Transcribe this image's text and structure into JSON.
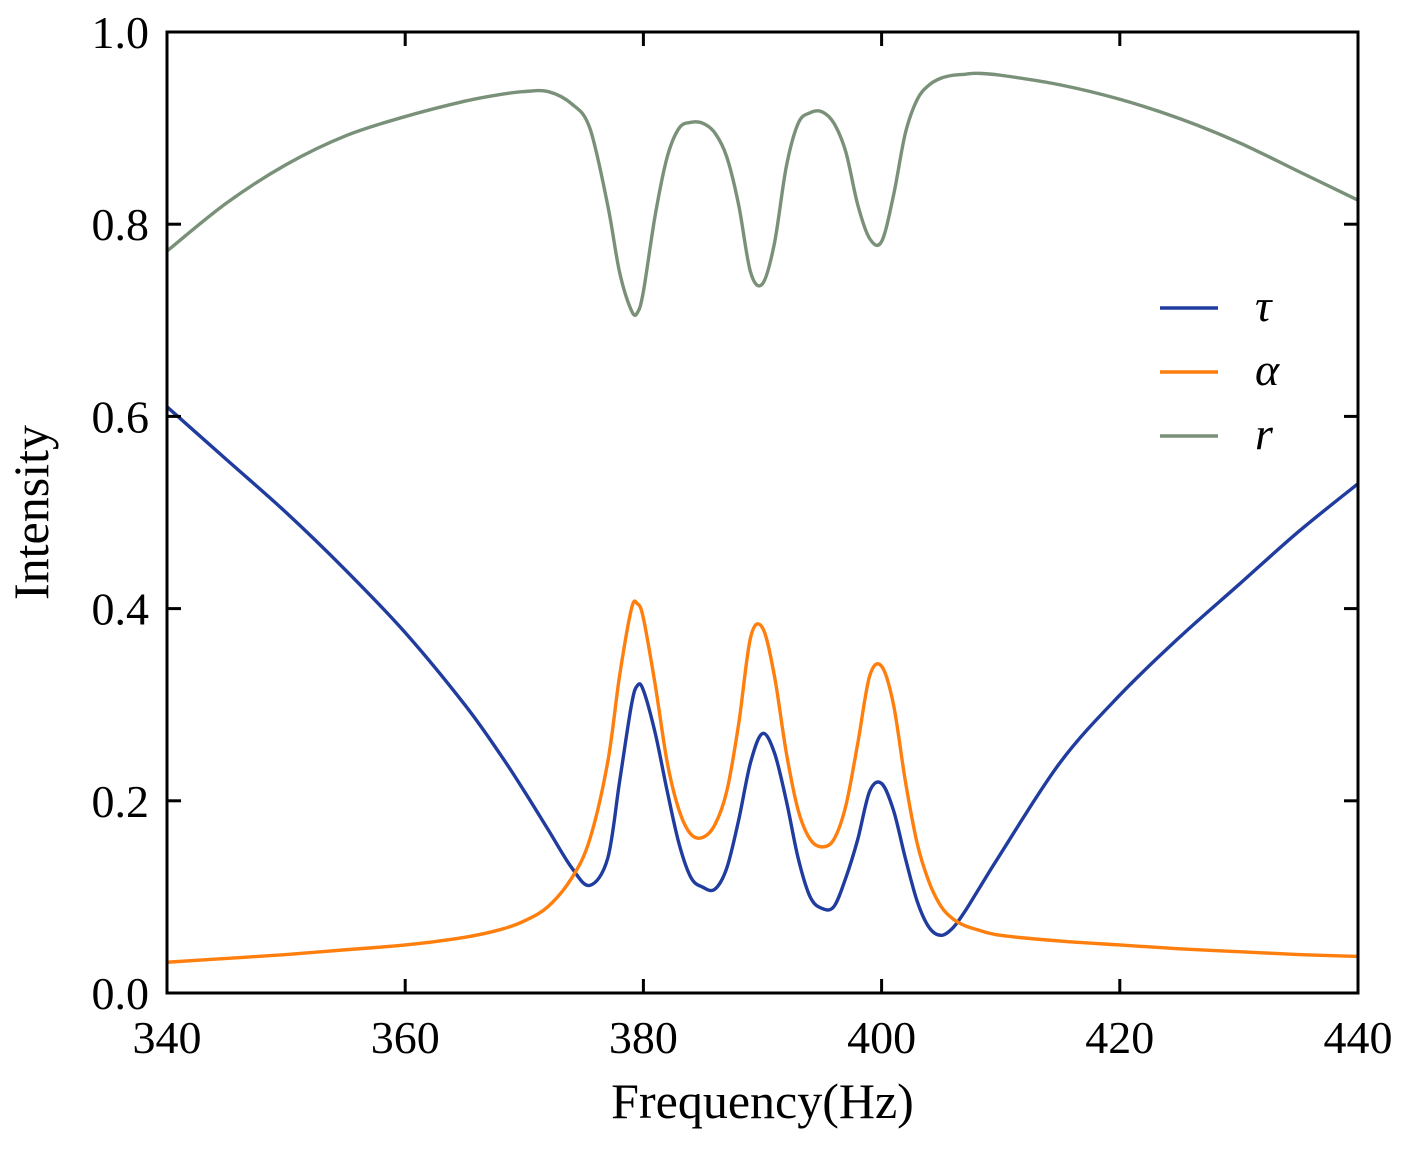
{
  "chart_data": {
    "type": "line",
    "xlabel": "Frequency(Hz)",
    "ylabel": "Intensity",
    "xlim": [
      340,
      440
    ],
    "ylim": [
      0.0,
      1.0
    ],
    "xticks": [
      340,
      360,
      380,
      400,
      420,
      440
    ],
    "yticks": [
      0.0,
      0.2,
      0.4,
      0.6,
      0.8,
      1.0
    ],
    "xtick_labels": [
      "340",
      "360",
      "380",
      "400",
      "420",
      "440"
    ],
    "ytick_labels": [
      "0.0",
      "0.2",
      "0.4",
      "0.6",
      "0.8",
      "1.0"
    ],
    "grid": false,
    "legend_position": "right",
    "x": [
      340,
      345,
      350,
      355,
      360,
      365,
      368,
      370,
      372,
      374,
      375.5,
      377,
      378,
      379,
      379.5,
      380,
      381,
      382,
      383,
      384,
      385,
      386,
      387,
      388,
      389,
      390,
      391,
      392,
      393,
      394,
      395,
      396,
      397,
      398,
      399,
      400,
      401,
      402,
      403,
      404,
      405,
      406,
      407,
      408,
      410,
      415,
      420,
      425,
      430,
      435,
      440
    ],
    "series": [
      {
        "name": "τ",
        "color": "#1f3c9e",
        "values": [
          0.61,
          0.555,
          0.5,
          0.44,
          0.375,
          0.3,
          0.248,
          0.21,
          0.17,
          0.13,
          0.112,
          0.14,
          0.22,
          0.3,
          0.32,
          0.315,
          0.27,
          0.21,
          0.155,
          0.12,
          0.11,
          0.108,
          0.13,
          0.18,
          0.24,
          0.27,
          0.25,
          0.2,
          0.14,
          0.1,
          0.088,
          0.09,
          0.12,
          0.16,
          0.21,
          0.218,
          0.19,
          0.14,
          0.095,
          0.068,
          0.06,
          0.068,
          0.085,
          0.105,
          0.145,
          0.24,
          0.31,
          0.37,
          0.425,
          0.48,
          0.53
        ]
      },
      {
        "name": "α",
        "color": "#ff7f0e",
        "values": [
          0.032,
          0.036,
          0.04,
          0.045,
          0.05,
          0.058,
          0.066,
          0.075,
          0.09,
          0.12,
          0.16,
          0.24,
          0.33,
          0.4,
          0.405,
          0.39,
          0.32,
          0.24,
          0.19,
          0.165,
          0.162,
          0.175,
          0.21,
          0.28,
          0.37,
          0.38,
          0.33,
          0.25,
          0.19,
          0.16,
          0.152,
          0.16,
          0.195,
          0.26,
          0.33,
          0.34,
          0.3,
          0.22,
          0.155,
          0.115,
          0.09,
          0.077,
          0.07,
          0.066,
          0.06,
          0.054,
          0.05,
          0.046,
          0.043,
          0.04,
          0.038
        ]
      },
      {
        "name": "r",
        "color": "#7a9179",
        "values": [
          0.772,
          0.822,
          0.862,
          0.892,
          0.912,
          0.928,
          0.935,
          0.938,
          0.938,
          0.925,
          0.9,
          0.82,
          0.75,
          0.71,
          0.708,
          0.73,
          0.81,
          0.87,
          0.9,
          0.906,
          0.905,
          0.895,
          0.87,
          0.82,
          0.75,
          0.738,
          0.78,
          0.86,
          0.905,
          0.916,
          0.917,
          0.905,
          0.875,
          0.82,
          0.785,
          0.782,
          0.83,
          0.895,
          0.93,
          0.945,
          0.952,
          0.955,
          0.956,
          0.957,
          0.955,
          0.945,
          0.93,
          0.91,
          0.885,
          0.855,
          0.825
        ]
      }
    ]
  }
}
